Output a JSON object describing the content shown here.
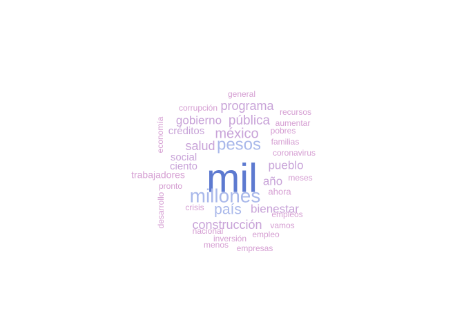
{
  "wordcloud": {
    "colors": {
      "largest": "#5d7ad0",
      "large": "#a9b8ea",
      "medium": "#c8a3d8",
      "small": "#d59ed2"
    },
    "words": [
      {
        "text": "mil",
        "tier": "largest"
      },
      {
        "text": "millones",
        "tier": "large"
      },
      {
        "text": "pesos",
        "tier": "large"
      },
      {
        "text": "país",
        "tier": "large"
      },
      {
        "text": "méxico",
        "tier": "medium"
      },
      {
        "text": "construcción",
        "tier": "medium"
      },
      {
        "text": "pública",
        "tier": "medium"
      },
      {
        "text": "programa",
        "tier": "medium"
      },
      {
        "text": "bienestar",
        "tier": "medium"
      },
      {
        "text": "salud",
        "tier": "medium"
      },
      {
        "text": "gobierno",
        "tier": "medium"
      },
      {
        "text": "pueblo",
        "tier": "medium"
      },
      {
        "text": "año",
        "tier": "medium"
      },
      {
        "text": "créditos",
        "tier": "medium"
      },
      {
        "text": "social",
        "tier": "medium"
      },
      {
        "text": "ciento",
        "tier": "medium"
      },
      {
        "text": "trabajadores",
        "tier": "small"
      },
      {
        "text": "ahora",
        "tier": "small"
      },
      {
        "text": "coronavirus",
        "tier": "small"
      },
      {
        "text": "familias",
        "tier": "small"
      },
      {
        "text": "pobres",
        "tier": "small"
      },
      {
        "text": "aumentar",
        "tier": "small"
      },
      {
        "text": "recursos",
        "tier": "small"
      },
      {
        "text": "corrupción",
        "tier": "small"
      },
      {
        "text": "general",
        "tier": "small"
      },
      {
        "text": "economía",
        "tier": "small"
      },
      {
        "text": "pronto",
        "tier": "small"
      },
      {
        "text": "meses",
        "tier": "small"
      },
      {
        "text": "desarrollo",
        "tier": "small"
      },
      {
        "text": "crisis",
        "tier": "small"
      },
      {
        "text": "empleos",
        "tier": "small"
      },
      {
        "text": "vamos",
        "tier": "small"
      },
      {
        "text": "nacional",
        "tier": "small"
      },
      {
        "text": "empleo",
        "tier": "small"
      },
      {
        "text": "inversión",
        "tier": "small"
      },
      {
        "text": "menos",
        "tier": "small"
      },
      {
        "text": "empresas",
        "tier": "small"
      }
    ]
  }
}
